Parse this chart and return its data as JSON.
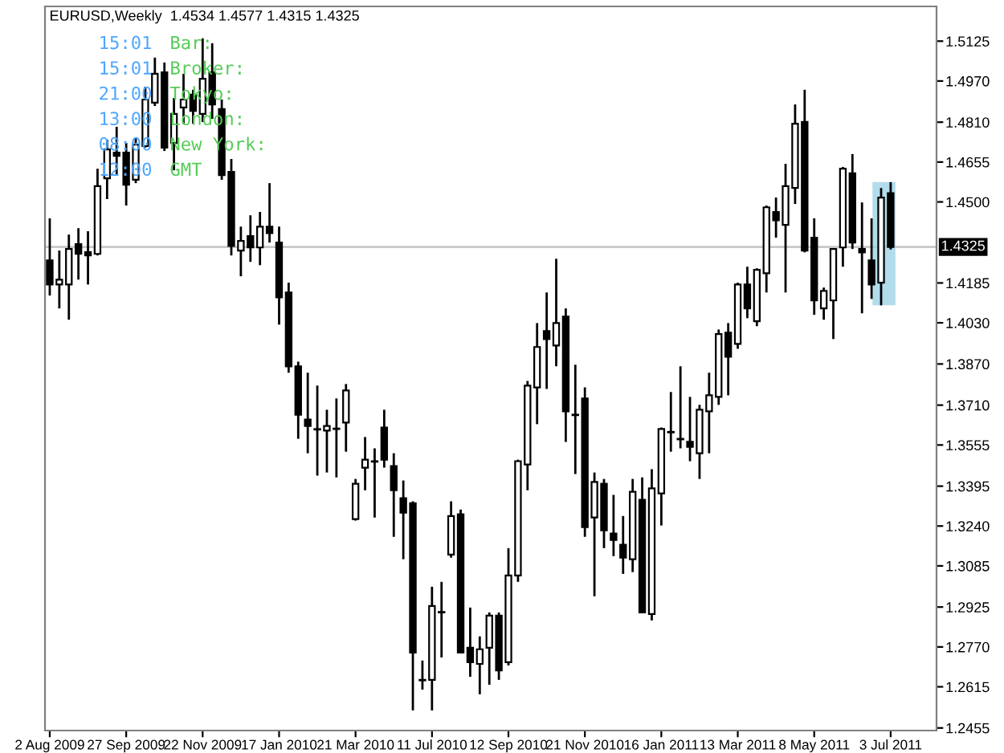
{
  "chart_data": {
    "type": "candlestick",
    "title": "EURUSD,Weekly  1.4534 1.4577 1.4315 1.4325",
    "categories": [
      "2 Aug 2009",
      null,
      null,
      null,
      null,
      null,
      null,
      null,
      "27 Sep 2009",
      null,
      null,
      null,
      null,
      null,
      null,
      null,
      "22 Nov 2009",
      null,
      null,
      null,
      null,
      null,
      null,
      null,
      "17 Jan 2010",
      null,
      null,
      null,
      null,
      null,
      null,
      null,
      "21 Mar 2010",
      null,
      null,
      null,
      null,
      null,
      null,
      null,
      "11 Jul 2010",
      null,
      null,
      null,
      null,
      null,
      null,
      null,
      "12 Sep 2010",
      null,
      null,
      null,
      null,
      null,
      null,
      null,
      "21 Nov 2010",
      null,
      null,
      null,
      null,
      null,
      null,
      null,
      "16 Jan 2011",
      null,
      null,
      null,
      null,
      null,
      null,
      null,
      "13 Mar 2011",
      null,
      null,
      null,
      null,
      null,
      null,
      null,
      "8 May 2011",
      null,
      null,
      null,
      null,
      null,
      null,
      null,
      "3 Jul 2011"
    ],
    "ohlc": [
      [
        1.4273,
        1.4436,
        1.4136,
        1.4179
      ],
      [
        1.4179,
        1.4311,
        1.4086,
        1.4198
      ],
      [
        1.4179,
        1.4373,
        1.4042,
        1.4317
      ],
      [
        1.4336,
        1.4398,
        1.4198,
        1.4298
      ],
      [
        1.4305,
        1.4386,
        1.4179,
        1.4292
      ],
      [
        1.4298,
        1.4629,
        1.4292,
        1.4561
      ],
      [
        1.4592,
        1.4742,
        1.4511,
        1.4704
      ],
      [
        1.4692,
        1.4792,
        1.4604,
        1.4679
      ],
      [
        1.4692,
        1.4729,
        1.4486,
        1.4567
      ],
      [
        1.4586,
        1.4748,
        1.4573,
        1.4723
      ],
      [
        1.4717,
        1.4948,
        1.4711,
        1.4898
      ],
      [
        1.4886,
        1.5061,
        1.4873,
        1.4998
      ],
      [
        1.5004,
        1.5042,
        1.4698,
        1.4711
      ],
      [
        1.4729,
        1.4904,
        1.4623,
        1.4842
      ],
      [
        1.4867,
        1.4998,
        1.4804,
        1.4898
      ],
      [
        1.4917,
        1.4936,
        1.4804,
        1.4854
      ],
      [
        1.4842,
        1.5136,
        1.4811,
        1.4979
      ],
      [
        1.5004,
        1.5117,
        1.4823,
        1.4879
      ],
      [
        1.4861,
        1.4898,
        1.4586,
        1.4604
      ],
      [
        1.4617,
        1.4667,
        1.4292,
        1.4329
      ],
      [
        1.4311,
        1.4404,
        1.4211,
        1.4348
      ],
      [
        1.4367,
        1.4448,
        1.4267,
        1.4323
      ],
      [
        1.4323,
        1.4461,
        1.4254,
        1.4404
      ],
      [
        1.4404,
        1.4573,
        1.4342,
        1.4379
      ],
      [
        1.4342,
        1.4404,
        1.4023,
        1.4129
      ],
      [
        1.4148,
        1.4186,
        1.3836,
        1.3861
      ],
      [
        1.3861,
        1.3879,
        1.3579,
        1.3673
      ],
      [
        1.3654,
        1.3836,
        1.3523,
        1.3629
      ],
      [
        1.3617,
        1.3786,
        1.3436,
        1.3615
      ],
      [
        1.3611,
        1.3692,
        1.3448,
        1.3629
      ],
      [
        1.3617,
        1.3736,
        1.3429,
        1.3619
      ],
      [
        1.3642,
        1.3792,
        1.3529,
        1.3767
      ],
      [
        1.3267,
        1.3423,
        1.3261,
        1.3404
      ],
      [
        1.3467,
        1.3586,
        1.3379,
        1.3498
      ],
      [
        1.3492,
        1.3542,
        1.3273,
        1.349
      ],
      [
        1.3623,
        1.3692,
        1.3467,
        1.3498
      ],
      [
        1.3473,
        1.3523,
        1.3198,
        1.3379
      ],
      [
        1.3348,
        1.3417,
        1.3111,
        1.3292
      ],
      [
        1.3329,
        1.3336,
        1.2523,
        1.2748
      ],
      [
        1.2642,
        1.2717,
        1.2604,
        1.264
      ],
      [
        1.2642,
        1.3004,
        1.2523,
        1.2929
      ],
      [
        1.2904,
        1.3023,
        1.2729,
        1.2906
      ],
      [
        1.3129,
        1.3336,
        1.3117,
        1.3279
      ],
      [
        1.3286,
        1.3304,
        1.2745,
        1.2748
      ],
      [
        1.2767,
        1.2923,
        1.2654,
        1.2711
      ],
      [
        1.2704,
        1.2811,
        1.2586,
        1.2761
      ],
      [
        1.2767,
        1.2904,
        1.2623,
        1.2892
      ],
      [
        1.2892,
        1.2904,
        1.2642,
        1.2679
      ],
      [
        1.2711,
        1.3154,
        1.2698,
        1.3048
      ],
      [
        1.3048,
        1.3498,
        1.3023,
        1.3492
      ],
      [
        1.3479,
        1.3804,
        1.3379,
        1.3786
      ],
      [
        1.3779,
        1.4029,
        1.3636,
        1.3936
      ],
      [
        1.3998,
        1.4148,
        1.3773,
        1.3967
      ],
      [
        1.3942,
        1.4279,
        1.3861,
        1.4029
      ],
      [
        1.4054,
        1.4086,
        1.3567,
        1.3686
      ],
      [
        1.3673,
        1.3867,
        1.3442,
        1.3671
      ],
      [
        1.3736,
        1.3779,
        1.3198,
        1.3236
      ],
      [
        1.3273,
        1.3448,
        1.2967,
        1.3411
      ],
      [
        1.3404,
        1.3423,
        1.3154,
        1.3223
      ],
      [
        1.3211,
        1.3361,
        1.3123,
        1.3186
      ],
      [
        1.3167,
        1.3279,
        1.3054,
        1.3117
      ],
      [
        1.3111,
        1.3423,
        1.3061,
        1.3373
      ],
      [
        1.3342,
        1.3429,
        1.2902,
        1.2904
      ],
      [
        1.2898,
        1.3461,
        1.2873,
        1.3386
      ],
      [
        1.3367,
        1.3623,
        1.3242,
        1.3617
      ],
      [
        1.3604,
        1.3761,
        1.3529,
        1.3606
      ],
      [
        1.3579,
        1.3861,
        1.3542,
        1.3577
      ],
      [
        1.3567,
        1.3742,
        1.3492,
        1.3548
      ],
      [
        1.3523,
        1.3711,
        1.3423,
        1.3692
      ],
      [
        1.3686,
        1.3836,
        1.3523,
        1.3748
      ],
      [
        1.3742,
        1.4004,
        1.3711,
        1.3986
      ],
      [
        1.3992,
        1.4029,
        1.3748,
        1.3898
      ],
      [
        1.3948,
        1.4186,
        1.3929,
        1.4179
      ],
      [
        1.4179,
        1.4248,
        1.4048,
        1.4086
      ],
      [
        1.4036,
        1.4242,
        1.4017,
        1.4236
      ],
      [
        1.4223,
        1.4486,
        1.4148,
        1.4479
      ],
      [
        1.4461,
        1.4517,
        1.4361,
        1.4429
      ],
      [
        1.4411,
        1.4648,
        1.4148,
        1.4561
      ],
      [
        1.4554,
        1.4879,
        1.4492,
        1.4804
      ],
      [
        1.4811,
        1.4936,
        1.4304,
        1.4311
      ],
      [
        1.4361,
        1.4436,
        1.4061,
        1.4117
      ],
      [
        1.4086,
        1.4167,
        1.4042,
        1.4154
      ],
      [
        1.4117,
        1.4317,
        1.3967,
        1.4317
      ],
      [
        1.4323,
        1.4636,
        1.4248,
        1.4629
      ],
      [
        1.4611,
        1.4686,
        1.4317,
        1.4342
      ],
      [
        1.4317,
        1.4498,
        1.4067,
        1.4304
      ],
      [
        1.4273,
        1.4436,
        1.4123,
        1.4179
      ],
      [
        1.4186,
        1.4554,
        1.4098,
        1.4517
      ],
      [
        1.4534,
        1.4577,
        1.4315,
        1.4325
      ]
    ],
    "ylim": [
      1.2445,
      1.526
    ],
    "yticks": [
      1.5125,
      {
        "value": 1.497,
        "label": "1.4970"
      },
      {
        "value": 1.481,
        "label": "1.4810"
      },
      1.4655,
      {
        "value": 1.45,
        "label": "1.4500"
      },
      1.4185,
      {
        "value": 1.403,
        "label": "1.4030"
      },
      {
        "value": 1.387,
        "label": "1.3870"
      },
      {
        "value": 1.371,
        "label": "1.3710"
      },
      1.3555,
      1.3395,
      {
        "value": 1.324,
        "label": "1.3240"
      },
      1.3085,
      1.2925,
      {
        "value": 1.277,
        "label": "1.2770"
      },
      1.2615,
      1.2455
    ],
    "ref_lines": [
      {
        "axis": "y",
        "value": 1.4325,
        "label": "1.4325",
        "color": "#c8c8c8"
      }
    ],
    "annotations": [
      "15:01",
      "Bar:",
      "15:01",
      "Broker:",
      "21:00",
      "Tokyo:",
      "13:00",
      "London:",
      "08:00",
      "New York:",
      "12:00",
      "GMT"
    ],
    "grid": false,
    "legend": false
  }
}
